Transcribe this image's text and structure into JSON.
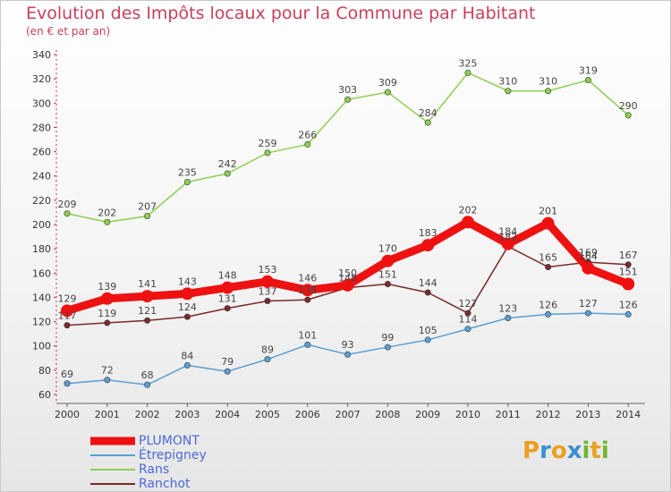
{
  "title": "Evolution des Impôts locaux pour la Commune par Habitant",
  "subtitle": "(en € et par an)",
  "logo": {
    "letters": [
      "P",
      "r",
      "o",
      "x",
      "i",
      "t",
      "i"
    ],
    "colors": [
      "#e8a020",
      "#3a8fd0",
      "#e8a020",
      "#3a8fd0",
      "#70b830",
      "#e8a020",
      "#70b830"
    ]
  },
  "chart_data": {
    "type": "line",
    "x": [
      2000,
      2001,
      2002,
      2003,
      2004,
      2005,
      2006,
      2007,
      2008,
      2009,
      2010,
      2011,
      2012,
      2013,
      2014
    ],
    "ylim": [
      60,
      340
    ],
    "yticks": [
      60,
      80,
      100,
      120,
      140,
      160,
      180,
      200,
      220,
      240,
      260,
      280,
      300,
      320,
      340
    ],
    "grid": false,
    "legend_position": "bottom-left",
    "series": [
      {
        "name": "PLUMONT",
        "color": "#ee1111",
        "values": [
          129,
          139,
          141,
          143,
          148,
          153,
          146,
          150,
          170,
          183,
          202,
          184,
          201,
          164,
          151
        ]
      },
      {
        "name": "Étrepigney",
        "color": "#5a9fd4",
        "values": [
          69,
          72,
          68,
          84,
          79,
          89,
          101,
          93,
          99,
          105,
          114,
          123,
          126,
          127,
          126
        ]
      },
      {
        "name": "Rans",
        "color": "#8cd050",
        "values": [
          209,
          202,
          207,
          235,
          242,
          259,
          266,
          303,
          309,
          284,
          325,
          310,
          310,
          319,
          290
        ]
      },
      {
        "name": "Ranchot",
        "color": "#7a2a2a",
        "values": [
          117,
          119,
          121,
          124,
          131,
          137,
          138,
          148,
          151,
          144,
          127,
          182,
          165,
          169,
          167
        ]
      }
    ]
  }
}
